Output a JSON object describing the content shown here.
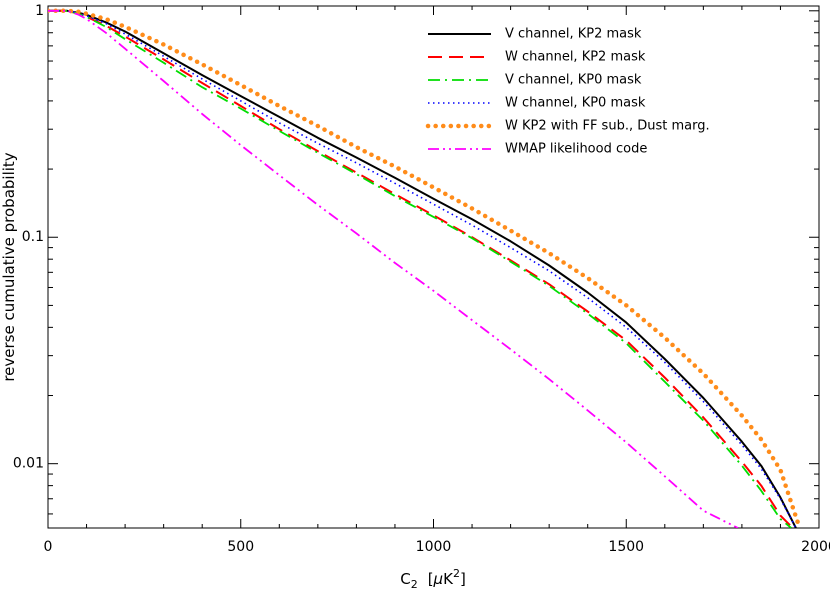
{
  "chart_data": {
    "type": "line",
    "xlabel": "C",
    "xlabel_sub": "2",
    "xlabel_unit_open": "[",
    "xlabel_unit_mu": "μ",
    "xlabel_unit_K": "K",
    "xlabel_unit_sup": "2",
    "xlabel_unit_close": "]",
    "ylabel": "reverse cumulative probability",
    "xlim": [
      0,
      2000
    ],
    "ylim": [
      0.0052,
      1.05
    ],
    "yscale": "log",
    "grid": false,
    "legend_position": "top-right",
    "x_ticks": [
      {
        "value": 0,
        "label": "0"
      },
      {
        "value": 500,
        "label": "500"
      },
      {
        "value": 1000,
        "label": "1000"
      },
      {
        "value": 1500,
        "label": "1500"
      },
      {
        "value": 2000,
        "label": "2000"
      }
    ],
    "y_ticks": [
      {
        "value": 1,
        "label": "1"
      },
      {
        "value": 0.1,
        "label": "0.1"
      },
      {
        "value": 0.01,
        "label": "0.01"
      }
    ],
    "series": [
      {
        "name": "V channel, KP2 mask",
        "color": "#000000",
        "style": "solid",
        "points": [
          [
            0,
            1.0
          ],
          [
            50,
            1.0
          ],
          [
            80,
            0.98
          ],
          [
            100,
            0.96
          ],
          [
            150,
            0.89
          ],
          [
            200,
            0.81
          ],
          [
            300,
            0.65
          ],
          [
            400,
            0.52
          ],
          [
            500,
            0.42
          ],
          [
            600,
            0.34
          ],
          [
            700,
            0.275
          ],
          [
            800,
            0.225
          ],
          [
            900,
            0.183
          ],
          [
            1000,
            0.148
          ],
          [
            1100,
            0.12
          ],
          [
            1200,
            0.096
          ],
          [
            1300,
            0.075
          ],
          [
            1400,
            0.057
          ],
          [
            1500,
            0.042
          ],
          [
            1600,
            0.029
          ],
          [
            1700,
            0.0195
          ],
          [
            1800,
            0.0125
          ],
          [
            1850,
            0.0098
          ],
          [
            1900,
            0.0071
          ],
          [
            1940,
            0.0052
          ]
        ]
      },
      {
        "name": "W channel, KP2 mask",
        "color": "#ff0000",
        "style": "dashed",
        "points": [
          [
            0,
            1.0
          ],
          [
            50,
            1.0
          ],
          [
            80,
            0.97
          ],
          [
            100,
            0.94
          ],
          [
            150,
            0.86
          ],
          [
            200,
            0.77
          ],
          [
            300,
            0.61
          ],
          [
            400,
            0.48
          ],
          [
            500,
            0.38
          ],
          [
            600,
            0.3
          ],
          [
            700,
            0.24
          ],
          [
            800,
            0.193
          ],
          [
            900,
            0.155
          ],
          [
            1000,
            0.125
          ],
          [
            1100,
            0.1
          ],
          [
            1200,
            0.079
          ],
          [
            1300,
            0.062
          ],
          [
            1400,
            0.047
          ],
          [
            1500,
            0.035
          ],
          [
            1600,
            0.024
          ],
          [
            1700,
            0.016
          ],
          [
            1800,
            0.0102
          ],
          [
            1850,
            0.008
          ],
          [
            1900,
            0.0059
          ],
          [
            1932,
            0.0052
          ]
        ]
      },
      {
        "name": "V channel, KP0 mask",
        "color": "#00dd00",
        "style": "dashdot",
        "points": [
          [
            0,
            1.0
          ],
          [
            50,
            1.0
          ],
          [
            80,
            0.97
          ],
          [
            100,
            0.94
          ],
          [
            150,
            0.85
          ],
          [
            200,
            0.75
          ],
          [
            300,
            0.59
          ],
          [
            400,
            0.46
          ],
          [
            500,
            0.37
          ],
          [
            600,
            0.295
          ],
          [
            700,
            0.236
          ],
          [
            800,
            0.19
          ],
          [
            900,
            0.152
          ],
          [
            1000,
            0.123
          ],
          [
            1100,
            0.099
          ],
          [
            1200,
            0.078
          ],
          [
            1300,
            0.061
          ],
          [
            1400,
            0.046
          ],
          [
            1500,
            0.034
          ],
          [
            1600,
            0.023
          ],
          [
            1700,
            0.0155
          ],
          [
            1800,
            0.0098
          ],
          [
            1850,
            0.0076
          ],
          [
            1900,
            0.0057
          ],
          [
            1928,
            0.0052
          ]
        ]
      },
      {
        "name": "W channel, KP0 mask",
        "color": "#0000ff",
        "style": "dotted",
        "points": [
          [
            0,
            1.0
          ],
          [
            50,
            1.0
          ],
          [
            80,
            0.98
          ],
          [
            100,
            0.95
          ],
          [
            150,
            0.88
          ],
          [
            200,
            0.79
          ],
          [
            300,
            0.63
          ],
          [
            400,
            0.5
          ],
          [
            500,
            0.4
          ],
          [
            600,
            0.32
          ],
          [
            700,
            0.26
          ],
          [
            800,
            0.213
          ],
          [
            900,
            0.173
          ],
          [
            1000,
            0.14
          ],
          [
            1100,
            0.113
          ],
          [
            1200,
            0.09
          ],
          [
            1300,
            0.071
          ],
          [
            1400,
            0.054
          ],
          [
            1500,
            0.04
          ],
          [
            1600,
            0.028
          ],
          [
            1700,
            0.0188
          ],
          [
            1800,
            0.0121
          ],
          [
            1850,
            0.0095
          ],
          [
            1900,
            0.007
          ],
          [
            1940,
            0.0052
          ]
        ]
      },
      {
        "name": "W KP2 with FF sub., Dust marg.",
        "color": "#ff8c1a",
        "style": "thick-dotted",
        "points": [
          [
            0,
            1.0
          ],
          [
            50,
            1.0
          ],
          [
            80,
            0.99
          ],
          [
            100,
            0.97
          ],
          [
            150,
            0.92
          ],
          [
            200,
            0.85
          ],
          [
            300,
            0.71
          ],
          [
            400,
            0.58
          ],
          [
            500,
            0.47
          ],
          [
            600,
            0.38
          ],
          [
            700,
            0.31
          ],
          [
            800,
            0.25
          ],
          [
            900,
            0.205
          ],
          [
            1000,
            0.166
          ],
          [
            1100,
            0.134
          ],
          [
            1200,
            0.107
          ],
          [
            1300,
            0.085
          ],
          [
            1400,
            0.066
          ],
          [
            1500,
            0.05
          ],
          [
            1600,
            0.036
          ],
          [
            1700,
            0.025
          ],
          [
            1800,
            0.0163
          ],
          [
            1850,
            0.0128
          ],
          [
            1900,
            0.0094
          ],
          [
            1945,
            0.0055
          ]
        ]
      },
      {
        "name": "WMAP likelihood code",
        "color": "#ff00ff",
        "style": "dashdotdot",
        "points": [
          [
            0,
            1.0
          ],
          [
            50,
            1.0
          ],
          [
            80,
            0.96
          ],
          [
            100,
            0.92
          ],
          [
            150,
            0.8
          ],
          [
            200,
            0.68
          ],
          [
            300,
            0.49
          ],
          [
            400,
            0.35
          ],
          [
            500,
            0.255
          ],
          [
            600,
            0.188
          ],
          [
            700,
            0.139
          ],
          [
            800,
            0.104
          ],
          [
            900,
            0.077
          ],
          [
            1000,
            0.058
          ],
          [
            1100,
            0.043
          ],
          [
            1200,
            0.032
          ],
          [
            1300,
            0.0236
          ],
          [
            1400,
            0.0172
          ],
          [
            1500,
            0.0124
          ],
          [
            1600,
            0.0088
          ],
          [
            1700,
            0.0062
          ],
          [
            1790,
            0.0052
          ]
        ]
      }
    ]
  }
}
